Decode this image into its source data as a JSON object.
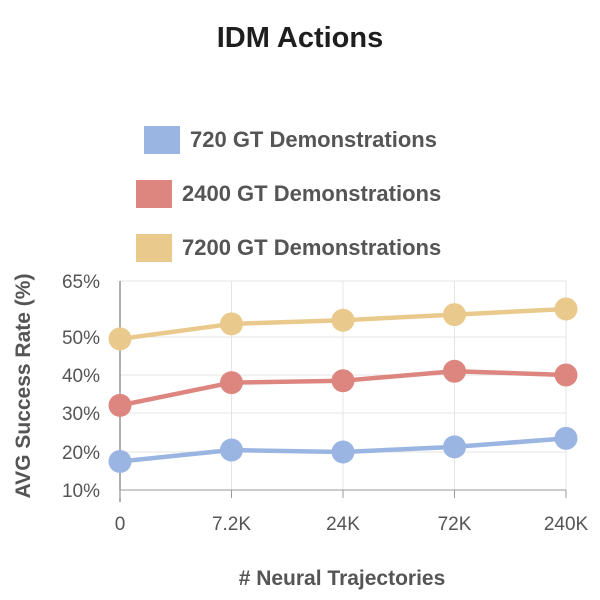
{
  "chart_data": {
    "type": "line",
    "title": "IDM Actions",
    "xlabel": "# Neural Trajectories",
    "ylabel": "AVG Success Rate (%)",
    "categories": [
      "0",
      "7.2K",
      "24K",
      "72K",
      "240K"
    ],
    "y_ticks": [
      "10%",
      "20%",
      "30%",
      "40%",
      "50%",
      "65%"
    ],
    "grid": true,
    "legend_position": "top",
    "series": [
      {
        "name": "720 GT Demonstrations",
        "color": "#9bb5e2",
        "values": [
          17.5,
          20.5,
          20.0,
          21.3,
          23.5
        ]
      },
      {
        "name": "2400 GT Demonstrations",
        "color": "#dd8680",
        "values": [
          32.0,
          38.0,
          38.5,
          41.0,
          40.0
        ]
      },
      {
        "name": "7200 GT Demonstrations",
        "color": "#e9ca8c",
        "values": [
          49.5,
          53.5,
          54.5,
          56.0,
          57.5
        ]
      }
    ]
  }
}
